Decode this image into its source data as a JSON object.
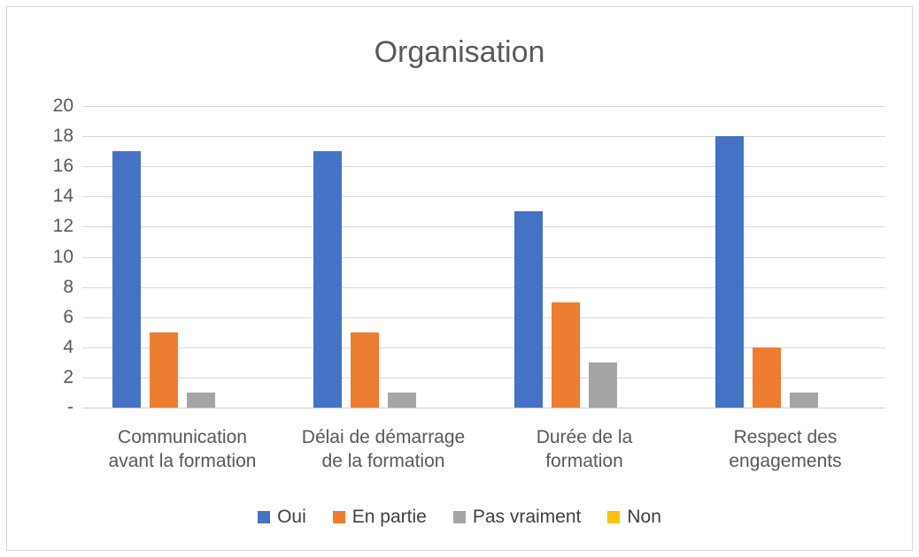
{
  "chart_data": {
    "type": "bar",
    "title": "Organisation",
    "categories": [
      "Communication avant la formation",
      "Délai de démarrage de la formation",
      "Durée de la formation",
      "Respect des engagements"
    ],
    "category_lines": [
      [
        "Communication",
        "avant la formation"
      ],
      [
        "Délai de démarrage",
        "de la formation"
      ],
      [
        "Durée de la",
        "formation"
      ],
      [
        "Respect des",
        "engagements"
      ]
    ],
    "series": [
      {
        "name": "Oui",
        "color": "#4472C4",
        "values": [
          17,
          17,
          13,
          18
        ]
      },
      {
        "name": "En partie",
        "color": "#ED7D31",
        "values": [
          5,
          5,
          7,
          4
        ]
      },
      {
        "name": "Pas vraiment",
        "color": "#A5A5A5",
        "values": [
          1,
          1,
          3,
          1
        ]
      },
      {
        "name": "Non",
        "color": "#FFC000",
        "values": [
          0,
          0,
          0,
          0
        ]
      }
    ],
    "y_axis": {
      "min": 0,
      "max": 20,
      "step": 2,
      "tick_labels": [
        "-",
        "2",
        "4",
        "6",
        "8",
        "10",
        "12",
        "14",
        "16",
        "18",
        "20"
      ]
    },
    "legend_position": "bottom",
    "grid": true
  },
  "colors": {
    "text": "#595959",
    "gridline": "#D9D9D9",
    "frame_border": "#D5D5D5",
    "background": "#FFFFFF"
  }
}
